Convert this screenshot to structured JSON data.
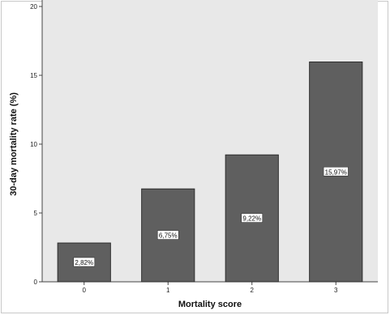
{
  "chart_data": {
    "type": "bar",
    "categories": [
      "0",
      "1",
      "2",
      "3"
    ],
    "values": [
      2.82,
      6.75,
      9.22,
      15.97
    ],
    "data_labels": [
      "2,82%",
      "6,75%",
      "9,22%",
      "15,97%"
    ],
    "title": "",
    "xlabel": "Mortality score",
    "ylabel": "30-day mortality rate (%)",
    "ylim": [
      0,
      20
    ],
    "yticks": [
      "0",
      "5",
      "10",
      "15",
      "20"
    ],
    "bar_color": "#5f5f5f",
    "plot_background": "#e8e8e8",
    "grid": false,
    "legend": "none"
  }
}
